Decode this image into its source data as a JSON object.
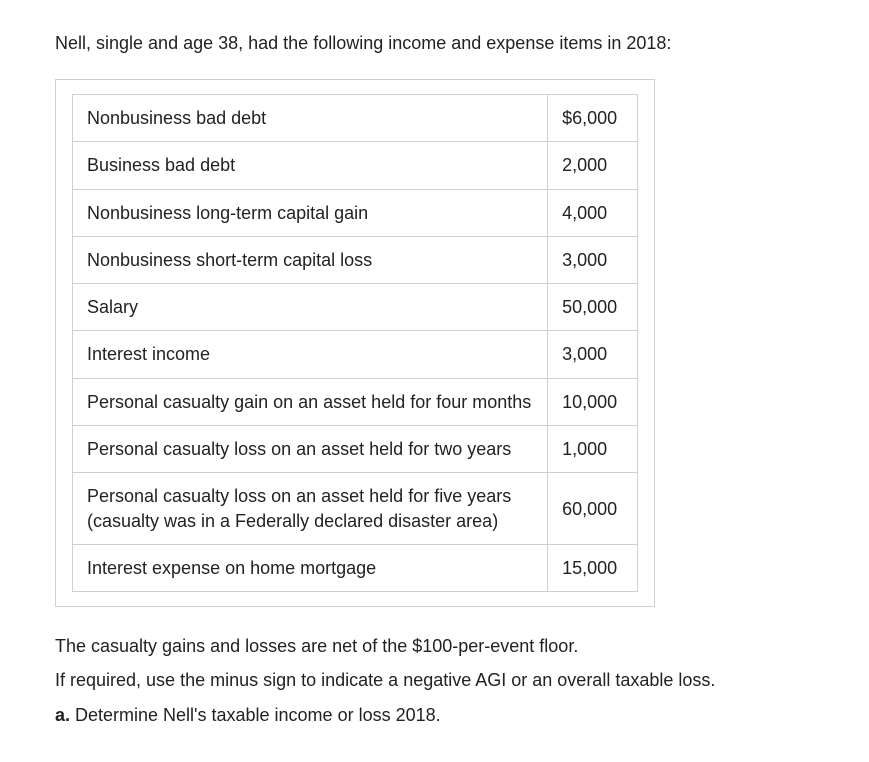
{
  "intro": "Nell, single and age 38, had the following income and expense items in 2018:",
  "rows": [
    {
      "desc": "Nonbusiness bad debt",
      "val": "$6,000"
    },
    {
      "desc": "Business bad debt",
      "val": "2,000"
    },
    {
      "desc": "Nonbusiness long-term capital gain",
      "val": "4,000"
    },
    {
      "desc": "Nonbusiness short-term capital loss",
      "val": "3,000"
    },
    {
      "desc": "Salary",
      "val": "50,000"
    },
    {
      "desc": "Interest income",
      "val": "3,000"
    },
    {
      "desc": "Personal casualty gain on an asset held for four months",
      "val": "10,000"
    },
    {
      "desc": "Personal casualty loss on an asset held for two years",
      "val": "1,000"
    },
    {
      "desc": "Personal casualty loss on an asset held for five years (casualty was in a Federally declared disaster area)",
      "val": "60,000"
    },
    {
      "desc": "Interest expense on home mortgage",
      "val": "15,000"
    }
  ],
  "note1": "The casualty gains and losses are net of the $100-per-event floor.",
  "note2": "If required, use the minus sign to indicate a negative AGI or an overall taxable loss.",
  "question_label": "a.",
  "question_text": " Determine Nell's taxable income or loss 2018."
}
